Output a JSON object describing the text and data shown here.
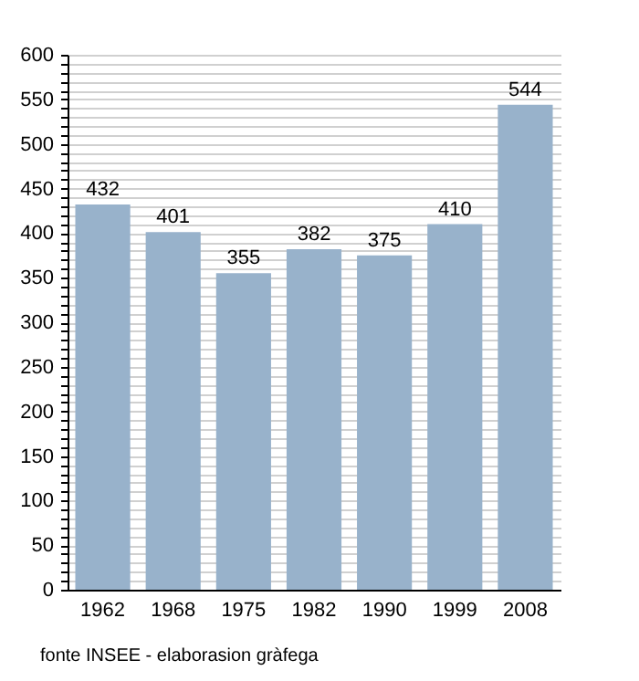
{
  "chart_data": {
    "type": "bar",
    "categories": [
      "1962",
      "1968",
      "1975",
      "1982",
      "1990",
      "1999",
      "2008"
    ],
    "values": [
      432,
      401,
      355,
      382,
      375,
      410,
      544
    ],
    "color": "#98b2cb",
    "data_labels": true,
    "grid": "y",
    "ylim": [
      0,
      600
    ],
    "yticks": [
      0,
      {
        "value": 10,
        "label": null
      },
      {
        "value": 20,
        "label": null
      },
      {
        "value": 30,
        "label": null
      },
      {
        "value": 40,
        "label": null
      },
      50,
      {
        "value": 60,
        "label": null
      },
      {
        "value": 70,
        "label": null
      },
      {
        "value": 80,
        "label": null
      },
      {
        "value": 90,
        "label": null
      },
      100,
      {
        "value": 110,
        "label": null
      },
      {
        "value": 120,
        "label": null
      },
      {
        "value": 130,
        "label": null
      },
      {
        "value": 140,
        "label": null
      },
      150,
      {
        "value": 160,
        "label": null
      },
      {
        "value": 170,
        "label": null
      },
      {
        "value": 180,
        "label": null
      },
      {
        "value": 190,
        "label": null
      },
      200,
      {
        "value": 210,
        "label": null
      },
      {
        "value": 220,
        "label": null
      },
      {
        "value": 230,
        "label": null
      },
      {
        "value": 240,
        "label": null
      },
      250,
      {
        "value": 260,
        "label": null
      },
      {
        "value": 270,
        "label": null
      },
      {
        "value": 280,
        "label": null
      },
      {
        "value": 290,
        "label": null
      },
      300,
      {
        "value": 310,
        "label": null
      },
      {
        "value": 320,
        "label": null
      },
      {
        "value": 330,
        "label": null
      },
      {
        "value": 340,
        "label": null
      },
      350,
      {
        "value": 360,
        "label": null
      },
      {
        "value": 370,
        "label": null
      },
      {
        "value": 380,
        "label": null
      },
      {
        "value": 390,
        "label": null
      },
      400,
      {
        "value": 410,
        "label": null
      },
      {
        "value": 420,
        "label": null
      },
      {
        "value": 430,
        "label": null
      },
      {
        "value": 440,
        "label": null
      },
      450,
      {
        "value": 460,
        "label": null
      },
      {
        "value": 470,
        "label": null
      },
      {
        "value": 480,
        "label": null
      },
      {
        "value": 490,
        "label": null
      },
      500,
      {
        "value": 510,
        "label": null
      },
      {
        "value": 520,
        "label": null
      },
      {
        "value": 530,
        "label": null
      },
      {
        "value": 540,
        "label": null
      },
      550,
      {
        "value": 560,
        "label": null
      },
      {
        "value": 570,
        "label": null
      },
      {
        "value": 580,
        "label": null
      },
      {
        "value": 590,
        "label": null
      },
      600
    ],
    "annotations": [
      "fonte INSEE - elaborasion gràfega"
    ]
  }
}
